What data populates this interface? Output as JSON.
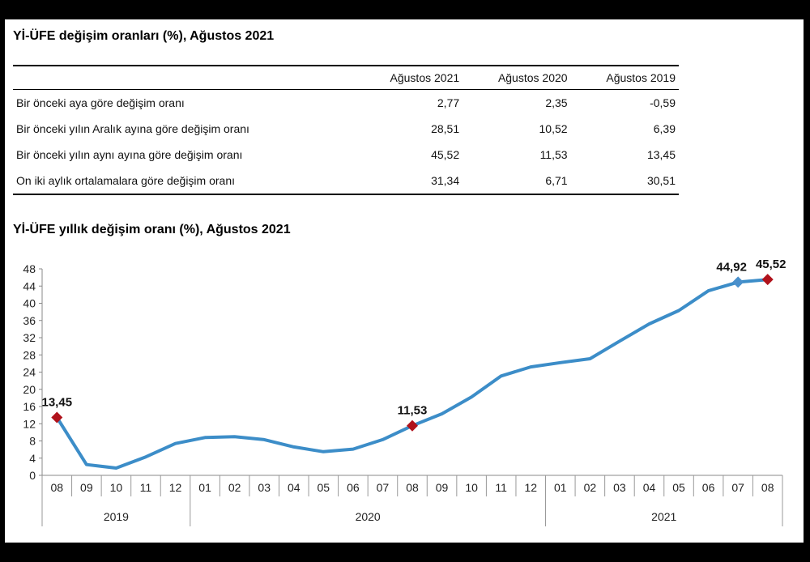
{
  "table": {
    "title": "Yİ-ÜFE değişim oranları (%), Ağustos 2021",
    "headers": [
      "",
      "Ağustos 2021",
      "Ağustos 2020",
      "Ağustos 2019"
    ],
    "rows": [
      [
        "Bir önceki aya göre değişim oranı",
        "2,77",
        "2,35",
        "-0,59"
      ],
      [
        "Bir önceki yılın Aralık ayına göre değişim oranı",
        "28,51",
        "10,52",
        "6,39"
      ],
      [
        "Bir önceki yılın aynı ayına göre değişim oranı",
        "45,52",
        "11,53",
        "13,45"
      ],
      [
        "On iki aylık ortalamalara göre değişim oranı",
        "31,34",
        "6,71",
        "30,51"
      ]
    ]
  },
  "chart_data": {
    "type": "line",
    "title": "Yİ-ÜFE yıllık değişim oranı (%), Ağustos 2021",
    "x": [
      "08",
      "09",
      "10",
      "11",
      "12",
      "01",
      "02",
      "03",
      "04",
      "05",
      "06",
      "07",
      "08",
      "09",
      "10",
      "11",
      "12",
      "01",
      "02",
      "03",
      "04",
      "05",
      "06",
      "07",
      "08"
    ],
    "year_groups": [
      {
        "label": "2019",
        "count": 5
      },
      {
        "label": "2020",
        "count": 12
      },
      {
        "label": "2021",
        "count": 8
      }
    ],
    "series": [
      {
        "values": [
          13.45,
          2.5,
          1.7,
          4.3,
          7.4,
          8.8,
          9.0,
          8.3,
          6.6,
          5.5,
          6.1,
          8.3,
          11.53,
          14.3,
          18.2,
          23.1,
          25.2,
          26.2,
          27.1,
          31.2,
          35.2,
          38.3,
          42.9,
          44.92,
          45.52
        ],
        "color": "#3c8dc8"
      }
    ],
    "markers": [
      {
        "index": 0,
        "label": "13,45",
        "shape": "diamond",
        "color": "#b0121b"
      },
      {
        "index": 12,
        "label": "11,53",
        "shape": "diamond",
        "color": "#b0121b"
      },
      {
        "index": 23,
        "label": "44,92",
        "shape": "diamond",
        "color": "#4a90cc"
      },
      {
        "index": 24,
        "label": "45,52",
        "shape": "diamond",
        "color": "#b0121b"
      }
    ],
    "yticks": [
      0,
      4,
      8,
      12,
      16,
      20,
      24,
      28,
      32,
      36,
      40,
      44,
      48
    ],
    "ylim": [
      0,
      48
    ],
    "grid": false
  }
}
